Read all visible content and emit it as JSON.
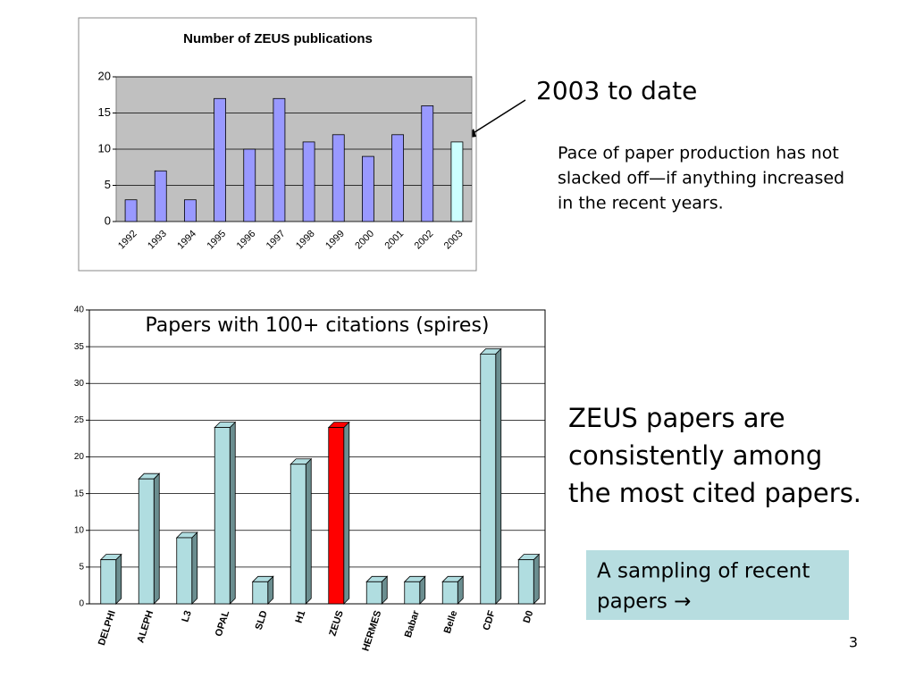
{
  "chart_data": [
    {
      "type": "bar",
      "title": "Number of ZEUS publications",
      "categories": [
        "1992",
        "1993",
        "1994",
        "1995",
        "1996",
        "1997",
        "1998",
        "1999",
        "2000",
        "2001",
        "2002",
        "2003"
      ],
      "values": [
        3,
        7,
        3,
        17,
        10,
        17,
        11,
        12,
        9,
        12,
        16,
        11
      ],
      "colors": [
        "#9999ff",
        "#9999ff",
        "#9999ff",
        "#9999ff",
        "#9999ff",
        "#9999ff",
        "#9999ff",
        "#9999ff",
        "#9999ff",
        "#9999ff",
        "#9999ff",
        "#ccffff"
      ],
      "ylim": [
        0,
        20
      ],
      "yticks": [
        0,
        5,
        10,
        15,
        20
      ],
      "grid": true,
      "plot_background": "#c0c0c0"
    },
    {
      "type": "bar",
      "style": "3d",
      "title": "Papers with 100+ citations (spires)",
      "categories": [
        "DELPHI",
        "ALEPH",
        "L3",
        "OPAL",
        "SLD",
        "H1",
        "ZEUS",
        "HERMES",
        "Babar",
        "Belle",
        "CDF",
        "D0"
      ],
      "values": [
        6,
        17,
        9,
        24,
        3,
        19,
        24,
        3,
        3,
        3,
        34,
        6
      ],
      "colors": [
        "#b0dde0",
        "#b0dde0",
        "#b0dde0",
        "#b0dde0",
        "#b0dde0",
        "#b0dde0",
        "#ff0000",
        "#b0dde0",
        "#b0dde0",
        "#b0dde0",
        "#b0dde0",
        "#b0dde0"
      ],
      "ylim": [
        0,
        40
      ],
      "yticks": [
        0,
        5,
        10,
        15,
        20,
        25,
        30,
        35,
        40
      ],
      "grid": true,
      "plot_background": "#ffffff"
    }
  ],
  "slide": {
    "callout": "2003 to date",
    "note_lines": [
      "Pace of paper production has not",
      "slacked off—if anything increased",
      "in the recent years."
    ],
    "statement_lines": [
      "ZEUS papers are",
      "consistently among",
      "the most cited papers."
    ],
    "box_lines": [
      "A sampling of recent",
      "papers →"
    ],
    "page_number": "3"
  }
}
